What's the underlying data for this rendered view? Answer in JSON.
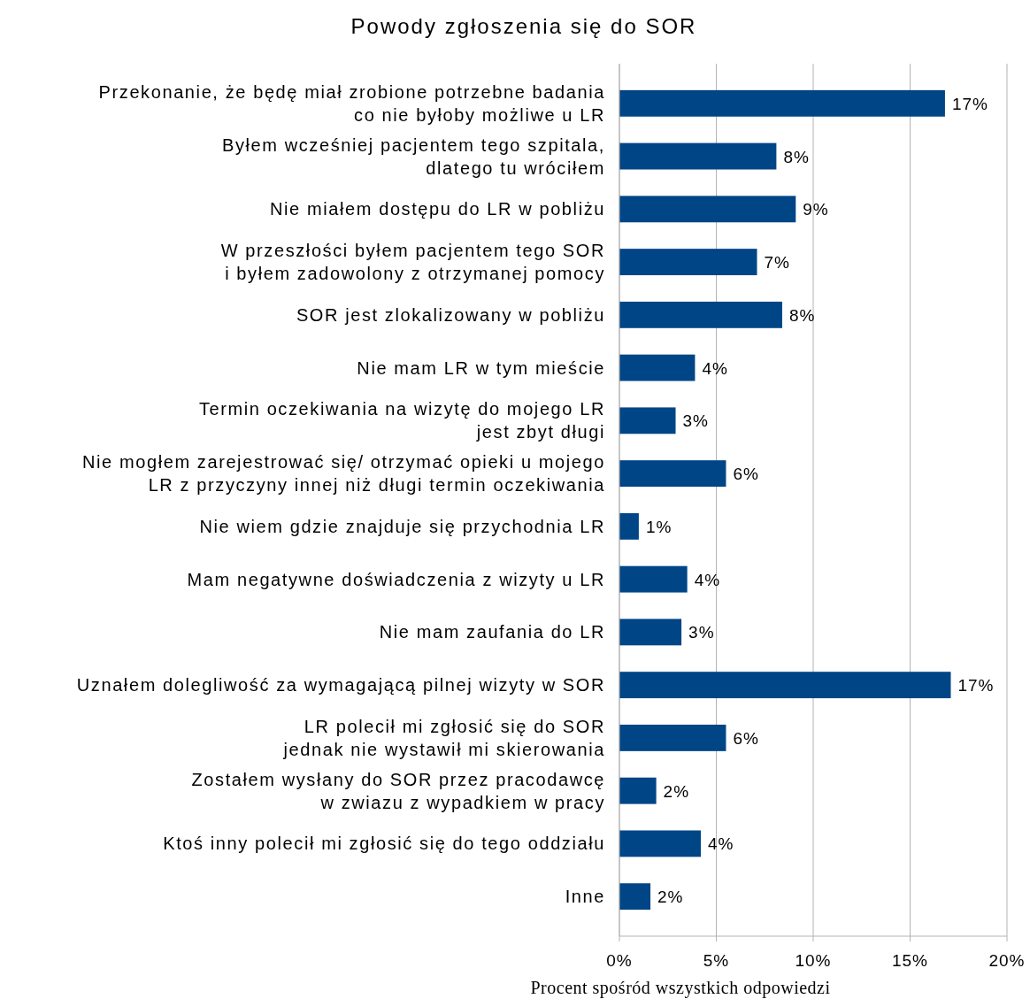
{
  "chart_data": {
    "type": "bar",
    "orientation": "horizontal",
    "title": "Powody zgłoszenia się do SOR",
    "xlabel": "Procent spośród wszystkich odpowiedzi",
    "categories": [
      "Przekonanie, że będę miał zrobione potrzebne badania\nco nie byłoby możliwe u LR",
      "Byłem wcześniej pacjentem tego szpitala,\ndlatego tu wróciłem",
      "Nie miałem dostępu do LR w pobliżu",
      "W przeszłości byłem pacjentem tego SOR\ni byłem zadowolony z otrzymanej pomocy",
      "SOR jest zlokalizowany w pobliżu",
      "Nie mam LR w tym mieście",
      "Termin oczekiwania na wizytę do mojego LR\njest zbyt długi",
      "Nie mogłem zarejestrować się/ otrzymać opieki u mojego\nLR z przyczyny innej niż długi termin oczekiwania",
      "Nie wiem gdzie znajduje się przychodnia LR",
      "Mam negatywne doświadczenia z wizyty u LR",
      "Nie mam zaufania do LR",
      "Uznałem dolegliwość za wymagającą pilnej wizyty w SOR",
      "LR polecił mi zgłosić się do SOR\njednak nie wystawił mi skierowania",
      "Zostałem wysłany do SOR przez pracodawcę\nw zwiazu z wypadkiem w pracy",
      "Ktoś inny polecił mi zgłosić się do tego oddziału",
      "Inne"
    ],
    "values": [
      16.8,
      8.1,
      9.1,
      7.1,
      8.4,
      3.9,
      2.9,
      5.5,
      1.0,
      3.5,
      3.2,
      17.1,
      5.5,
      1.9,
      4.2,
      1.6
    ],
    "value_labels": [
      "17%",
      "8%",
      "9%",
      "7%",
      "8%",
      "4%",
      "3%",
      "6%",
      "1%",
      "4%",
      "3%",
      "17%",
      "6%",
      "2%",
      "4%",
      "2%"
    ],
    "color": "#004586",
    "xlim": [
      0,
      20
    ],
    "xticks": [
      {
        "value": 0,
        "label": "0%"
      },
      {
        "value": 5,
        "label": "5%"
      },
      {
        "value": 10,
        "label": "10%"
      },
      {
        "value": 15,
        "label": "15%"
      },
      {
        "value": 20,
        "label": "20%"
      }
    ],
    "grid": "x"
  }
}
